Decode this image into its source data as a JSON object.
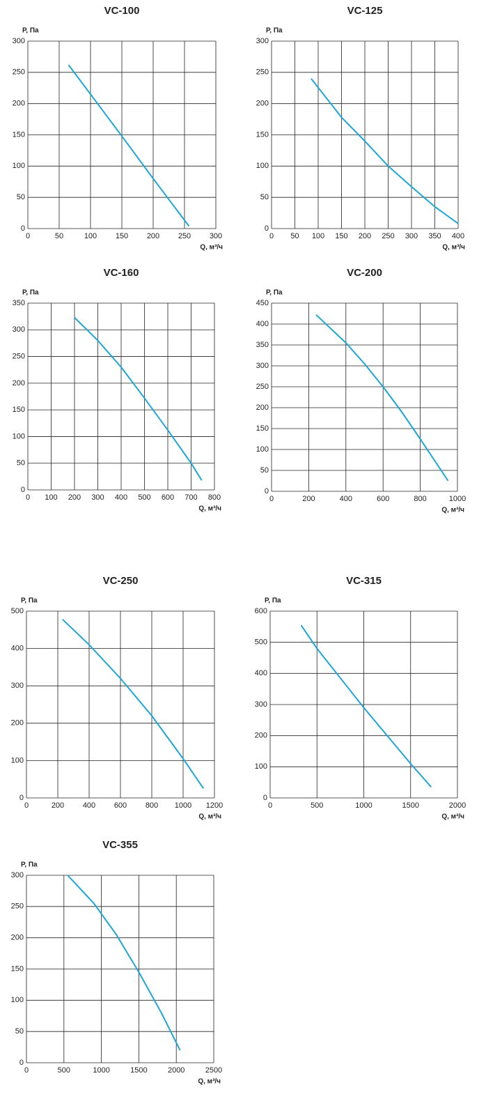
{
  "chart_data": [
    {
      "type": "line",
      "title": "VC-100",
      "x_label": "Q, м³/ч",
      "y_label": "Р, Па",
      "xlim": [
        0,
        300
      ],
      "ylim": [
        0,
        300
      ],
      "xticks": [
        0,
        50,
        100,
        150,
        200,
        250,
        300
      ],
      "yticks": [
        0,
        50,
        100,
        150,
        200,
        250,
        300
      ],
      "grid": true,
      "series": [
        {
          "color": "#1ba6d8",
          "x": [
            65,
            100,
            150,
            200,
            257
          ],
          "values": [
            262,
            215,
            148,
            80,
            4
          ]
        }
      ]
    },
    {
      "type": "line",
      "title": "VC-125",
      "x_label": "Q, м³/ч",
      "y_label": "Р, Па",
      "xlim": [
        0,
        400
      ],
      "ylim": [
        0,
        300
      ],
      "xticks": [
        0,
        50,
        100,
        150,
        200,
        250,
        300,
        350,
        400
      ],
      "yticks": [
        0,
        50,
        100,
        150,
        200,
        250,
        300
      ],
      "grid": true,
      "series": [
        {
          "color": "#1ba6d8",
          "x": [
            85,
            150,
            200,
            250,
            300,
            350,
            400
          ],
          "values": [
            240,
            178,
            140,
            100,
            67,
            35,
            8
          ]
        }
      ]
    },
    {
      "type": "line",
      "title": "VC-160",
      "x_label": "Q, м³/ч",
      "y_label": "Р, Па",
      "xlim": [
        0,
        800
      ],
      "ylim": [
        0,
        350
      ],
      "xticks": [
        0,
        100,
        200,
        300,
        400,
        500,
        600,
        700,
        800
      ],
      "yticks": [
        0,
        50,
        100,
        150,
        200,
        250,
        300,
        350
      ],
      "grid": true,
      "series": [
        {
          "color": "#1ba6d8",
          "x": [
            200,
            300,
            400,
            500,
            600,
            700,
            745
          ],
          "values": [
            323,
            280,
            230,
            172,
            112,
            50,
            18
          ]
        }
      ]
    },
    {
      "type": "line",
      "title": "VC-200",
      "x_label": "Q, м³/ч",
      "y_label": "Р, Па",
      "xlim": [
        0,
        1000
      ],
      "ylim": [
        0,
        450
      ],
      "xticks": [
        0,
        200,
        400,
        600,
        800,
        1000
      ],
      "yticks": [
        0,
        50,
        100,
        150,
        200,
        250,
        300,
        350,
        400,
        450
      ],
      "grid": true,
      "series": [
        {
          "color": "#1ba6d8",
          "x": [
            240,
            400,
            500,
            600,
            700,
            800,
            950
          ],
          "values": [
            422,
            355,
            305,
            250,
            190,
            125,
            25
          ]
        }
      ]
    },
    {
      "type": "line",
      "title": "VC-250",
      "x_label": "Q, м³/ч",
      "y_label": "Р, Па",
      "xlim": [
        0,
        1200
      ],
      "ylim": [
        0,
        500
      ],
      "xticks": [
        0,
        200,
        400,
        600,
        800,
        1000,
        1200
      ],
      "yticks": [
        0,
        100,
        200,
        300,
        400,
        500
      ],
      "grid": true,
      "series": [
        {
          "color": "#1ba6d8",
          "x": [
            230,
            400,
            600,
            800,
            1000,
            1130
          ],
          "values": [
            478,
            410,
            320,
            220,
            105,
            25
          ]
        }
      ]
    },
    {
      "type": "line",
      "title": "VC-315",
      "x_label": "Q, м³/ч",
      "y_label": "Р, Па",
      "xlim": [
        0,
        2000
      ],
      "ylim": [
        0,
        600
      ],
      "xticks": [
        0,
        500,
        1000,
        1500,
        2000
      ],
      "yticks": [
        0,
        100,
        200,
        300,
        400,
        500,
        600
      ],
      "grid": true,
      "series": [
        {
          "color": "#1ba6d8",
          "x": [
            330,
            500,
            1000,
            1500,
            1720
          ],
          "values": [
            555,
            480,
            290,
            110,
            35
          ]
        }
      ]
    },
    {
      "type": "line",
      "title": "VC-355",
      "x_label": "Q, м³/ч",
      "y_label": "Р, Па",
      "xlim": [
        0,
        2500
      ],
      "ylim": [
        0,
        300
      ],
      "xticks": [
        0,
        500,
        1000,
        1500,
        2000,
        2500
      ],
      "yticks": [
        0,
        50,
        100,
        150,
        200,
        250,
        300
      ],
      "grid": true,
      "series": [
        {
          "color": "#1ba6d8",
          "x": [
            550,
            900,
            1200,
            1500,
            1800,
            2050
          ],
          "values": [
            300,
            255,
            205,
            145,
            80,
            20
          ]
        }
      ]
    }
  ]
}
